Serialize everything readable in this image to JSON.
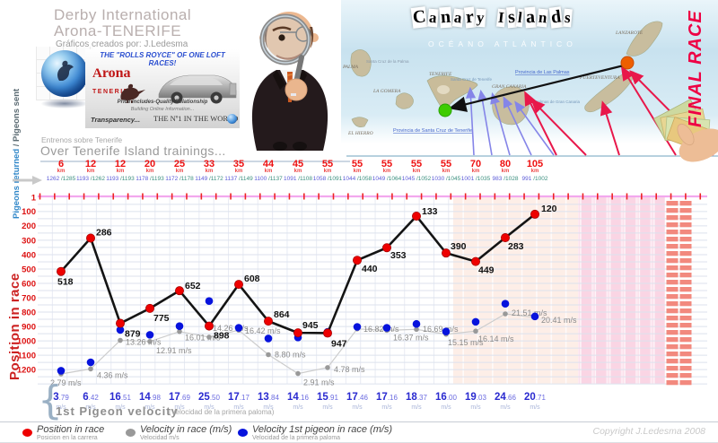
{
  "header": {
    "title_line1": "Derby International",
    "title_line2": "Arona-TENERIFE",
    "credit": "Gráficos creados por: J.Ledesma"
  },
  "ad": {
    "headline": "THE \"ROLLS ROYCE\" OF ONE LOFT RACES!",
    "brand_top": "Arona",
    "brand_bottom": "TENERIFE",
    "tagline1": "Price includes-Quality Relationship",
    "tagline2": "Building Online Information...",
    "tagline3": "Transparency...",
    "tagline4": "THE Nº1 IN THE WORLD"
  },
  "map": {
    "title": "Canary Islands",
    "ocean": "OCÉANO ATLÁNTICO",
    "final_race": "FINAL RACE",
    "islands": {
      "palma": "PALMA",
      "gomera": "LA GOMERA",
      "hierro": "EL HIERRO",
      "tenerife": "TENERIFE",
      "gran_canaria": "GRAN CANARIA",
      "fuerteventura": "FUERTEVENTURA",
      "lanzarote": "LANZAROTE"
    },
    "city_palma": "Santa Cruz de la Palma",
    "city_south": "Santa Cruz de Tenerife",
    "city_north": "Las Palmas de Gran Canaria",
    "province_link_north": "Provincia de Las Palmas",
    "province_link_south": "Provincia de Santa Cruz de Tenerife"
  },
  "sidebar": {
    "returned": "Pigeons returned",
    "sent": " / Pigeons sent",
    "position": "Position in race"
  },
  "trainings": {
    "label_es": "Entrenos sobre Tenerife",
    "label_en": "Over Tenerife Island trainings...",
    "unit": "km",
    "columns": [
      {
        "km": 6,
        "returned": 1262,
        "sent": 1285
      },
      {
        "km": 12,
        "returned": 1193,
        "sent": 1262
      },
      {
        "km": 12,
        "returned": 1193,
        "sent": 1193
      },
      {
        "km": 20,
        "returned": 1178,
        "sent": 1193
      },
      {
        "km": 25,
        "returned": 1172,
        "sent": 1178
      },
      {
        "km": 33,
        "returned": 1149,
        "sent": 1172
      },
      {
        "km": 35,
        "returned": 1137,
        "sent": 1149
      },
      {
        "km": 44,
        "returned": 1100,
        "sent": 1137
      },
      {
        "km": 45,
        "returned": 1091,
        "sent": 1108
      },
      {
        "km": 55,
        "returned": 1058,
        "sent": 1091
      },
      {
        "km": 55,
        "returned": 1044,
        "sent": 1058
      },
      {
        "km": 55,
        "returned": 1049,
        "sent": 1064
      },
      {
        "km": 55,
        "returned": 1045,
        "sent": 1052
      },
      {
        "km": 55,
        "returned": 1030,
        "sent": 1045
      },
      {
        "km": 70,
        "returned": 1001,
        "sent": 1035
      },
      {
        "km": 80,
        "returned": 983,
        "sent": 1028
      },
      {
        "km": 105,
        "returned": 991,
        "sent": 1002
      }
    ]
  },
  "chart_data": {
    "type": "line",
    "title": "Over Tenerife Island trainings...",
    "ylabel": "Position in race",
    "y_ticks": [
      1,
      100,
      200,
      300,
      400,
      500,
      600,
      700,
      800,
      900,
      1000,
      1100,
      1200
    ],
    "y_inverted": true,
    "grid": true,
    "categories_km": [
      6,
      12,
      12,
      20,
      25,
      33,
      35,
      44,
      45,
      55,
      55,
      55,
      55,
      55,
      70,
      80,
      105
    ],
    "series": [
      {
        "name": "Position in race",
        "unit": "position",
        "values": [
          518,
          286,
          879,
          775,
          652,
          898,
          608,
          864,
          945,
          947,
          440,
          353,
          133,
          390,
          449,
          283,
          120
        ]
      },
      {
        "name": "Velocity in race (m/s)",
        "unit": "m/s",
        "values": [
          2.79,
          4.36,
          13.26,
          12.91,
          16.01,
          14.26,
          16.42,
          8.8,
          2.91,
          4.78,
          16.82,
          16.37,
          16.69,
          15.15,
          16.14,
          21.51,
          20.41
        ]
      },
      {
        "name": "Velocity 1st pigeon in race (m/s)",
        "unit": "m/s",
        "values": [
          3.79,
          6.42,
          16.51,
          14.98,
          17.69,
          25.5,
          17.17,
          13.84,
          14.16,
          15.91,
          17.46,
          17.16,
          18.37,
          16.0,
          19.03,
          24.66,
          20.71
        ]
      }
    ],
    "colors": {
      "position_line": "#141414",
      "position_marker": "#ee0000",
      "velocity_line": "#cccccc",
      "velocity_marker": "#999999",
      "first_pigeon_marker": "#0713dd",
      "axis_labels": "#dd1111",
      "top_line": "#f2a8ee"
    }
  },
  "first_pigeon": {
    "label": "1st Pigeon velocity",
    "sublabel": "(Velocidad de la primera paloma)",
    "unit": "m/s"
  },
  "legend": {
    "items": [
      {
        "color": "#ee0000",
        "label": "Position in race",
        "sublabel": "Posicion en la carrera"
      },
      {
        "color": "#999999",
        "label": "Velocity in race (m/s)",
        "sublabel": "Velocidad m/s"
      },
      {
        "color": "#0713dd",
        "label": "Velocity 1st pigeon in race (m/s)",
        "sublabel": "Velocidad de la primera paloma"
      }
    ]
  },
  "copyright": "Copyright J.Ledesma 2008"
}
